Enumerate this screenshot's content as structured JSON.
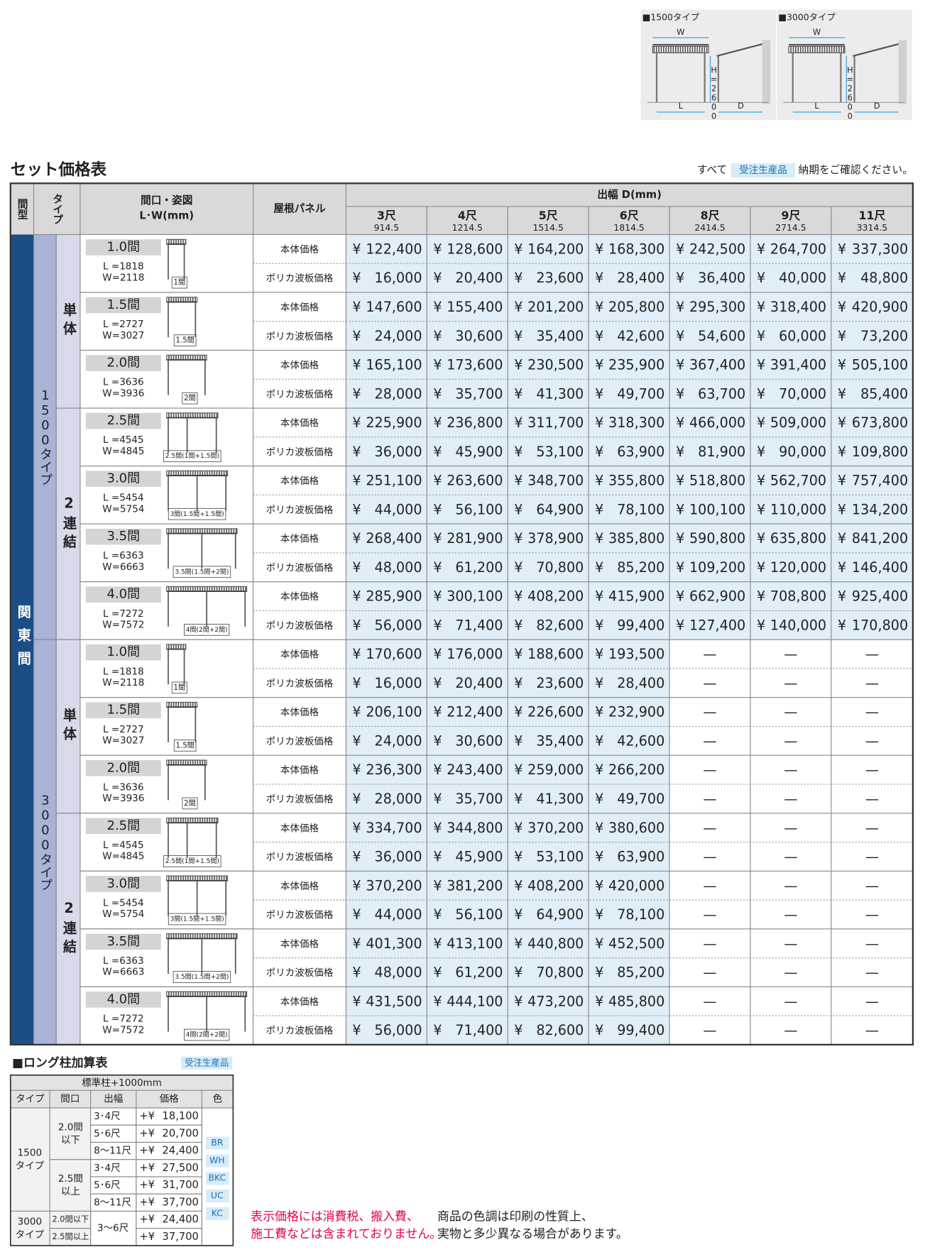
{
  "diagram": {
    "items": [
      {
        "title": "■1500タイプ",
        "w": "W",
        "h": "H=2600",
        "l": "L",
        "d": "D"
      },
      {
        "title": "■3000タイプ",
        "w": "W",
        "h": "H=2600",
        "l": "L",
        "d": "D"
      }
    ]
  },
  "header": {
    "title": "セット価格表",
    "note_pre": "すべて",
    "badge": "受注生産品",
    "note_post": "納期をご確認ください。"
  },
  "table": {
    "head_type_form": "間型",
    "head_type": "タイプ",
    "head_size": "間口・姿図",
    "head_size_unit": "L･W(mm)",
    "head_panel": "屋根パネル",
    "head_depth": "出幅 D(mm)",
    "columns": [
      {
        "shaku": "3尺",
        "mm": "914.5"
      },
      {
        "shaku": "4尺",
        "mm": "1214.5"
      },
      {
        "shaku": "5尺",
        "mm": "1514.5"
      },
      {
        "shaku": "6尺",
        "mm": "1814.5"
      },
      {
        "shaku": "8尺",
        "mm": "2414.5"
      },
      {
        "shaku": "9尺",
        "mm": "2714.5"
      },
      {
        "shaku": "11尺",
        "mm": "3314.5"
      }
    ],
    "region": "関東間",
    "panels": [
      "本体価格",
      "ポリカ波板価格"
    ],
    "yen": "¥",
    "sizes": [
      {
        "label": "1.0間",
        "l": "L =1818",
        "w": "W=2118",
        "figure": "1間"
      },
      {
        "label": "1.5間",
        "l": "L =2727",
        "w": "W=3027",
        "figure": "1.5間"
      },
      {
        "label": "2.0間",
        "l": "L =3636",
        "w": "W=3936",
        "figure": "2間"
      },
      {
        "label": "2.5間",
        "l": "L =4545",
        "w": "W=4845",
        "figure": "2.5間(1間+1.5間)"
      },
      {
        "label": "3.0間",
        "l": "L =5454",
        "w": "W=5754",
        "figure": "3間(1.5間+1.5間)"
      },
      {
        "label": "3.5間",
        "l": "L =6363",
        "w": "W=6663",
        "figure": "3.5間(1.5間+2間)"
      },
      {
        "label": "4.0間",
        "l": "L =7272",
        "w": "W=7572",
        "figure": "4間(2間+2間)"
      }
    ],
    "types": [
      {
        "name": "1500タイプ",
        "groups": [
          {
            "name": "単体",
            "rows": [
              {
                "main": [
                  "122,400",
                  "128,600",
                  "164,200",
                  "168,300",
                  "242,500",
                  "264,700",
                  "337,300"
                ],
                "poly": [
                  "16,000",
                  "20,400",
                  "23,600",
                  "28,400",
                  "36,400",
                  "40,000",
                  "48,800"
                ]
              },
              {
                "main": [
                  "147,600",
                  "155,400",
                  "201,200",
                  "205,800",
                  "295,300",
                  "318,400",
                  "420,900"
                ],
                "poly": [
                  "24,000",
                  "30,600",
                  "35,400",
                  "42,600",
                  "54,600",
                  "60,000",
                  "73,200"
                ]
              },
              {
                "main": [
                  "165,100",
                  "173,600",
                  "230,500",
                  "235,900",
                  "367,400",
                  "391,400",
                  "505,100"
                ],
                "poly": [
                  "28,000",
                  "35,700",
                  "41,300",
                  "49,700",
                  "63,700",
                  "70,000",
                  "85,400"
                ]
              }
            ]
          },
          {
            "name": "2連結",
            "rows": [
              {
                "main": [
                  "225,900",
                  "236,800",
                  "311,700",
                  "318,300",
                  "466,000",
                  "509,000",
                  "673,800"
                ],
                "poly": [
                  "36,000",
                  "45,900",
                  "53,100",
                  "63,900",
                  "81,900",
                  "90,000",
                  "109,800"
                ]
              },
              {
                "main": [
                  "251,100",
                  "263,600",
                  "348,700",
                  "355,800",
                  "518,800",
                  "562,700",
                  "757,400"
                ],
                "poly": [
                  "44,000",
                  "56,100",
                  "64,900",
                  "78,100",
                  "100,100",
                  "110,000",
                  "134,200"
                ]
              },
              {
                "main": [
                  "268,400",
                  "281,900",
                  "378,900",
                  "385,800",
                  "590,800",
                  "635,800",
                  "841,200"
                ],
                "poly": [
                  "48,000",
                  "61,200",
                  "70,800",
                  "85,200",
                  "109,200",
                  "120,000",
                  "146,400"
                ]
              },
              {
                "main": [
                  "285,900",
                  "300,100",
                  "408,200",
                  "415,900",
                  "662,900",
                  "708,800",
                  "925,400"
                ],
                "poly": [
                  "56,000",
                  "71,400",
                  "82,600",
                  "99,400",
                  "127,400",
                  "140,000",
                  "170,800"
                ]
              }
            ]
          }
        ]
      },
      {
        "name": "3000タイプ",
        "groups": [
          {
            "name": "単体",
            "rows": [
              {
                "main": [
                  "170,600",
                  "176,000",
                  "188,600",
                  "193,500",
                  "—",
                  "—",
                  "—"
                ],
                "poly": [
                  "16,000",
                  "20,400",
                  "23,600",
                  "28,400",
                  "—",
                  "—",
                  "—"
                ]
              },
              {
                "main": [
                  "206,100",
                  "212,400",
                  "226,600",
                  "232,900",
                  "—",
                  "—",
                  "—"
                ],
                "poly": [
                  "24,000",
                  "30,600",
                  "35,400",
                  "42,600",
                  "—",
                  "—",
                  "—"
                ]
              },
              {
                "main": [
                  "236,300",
                  "243,400",
                  "259,000",
                  "266,200",
                  "—",
                  "—",
                  "—"
                ],
                "poly": [
                  "28,000",
                  "35,700",
                  "41,300",
                  "49,700",
                  "—",
                  "—",
                  "—"
                ]
              }
            ]
          },
          {
            "name": "2連結",
            "rows": [
              {
                "main": [
                  "334,700",
                  "344,800",
                  "370,200",
                  "380,600",
                  "—",
                  "—",
                  "—"
                ],
                "poly": [
                  "36,000",
                  "45,900",
                  "53,100",
                  "63,900",
                  "—",
                  "—",
                  "—"
                ]
              },
              {
                "main": [
                  "370,200",
                  "381,200",
                  "408,200",
                  "420,000",
                  "—",
                  "—",
                  "—"
                ],
                "poly": [
                  "44,000",
                  "56,100",
                  "64,900",
                  "78,100",
                  "—",
                  "—",
                  "—"
                ]
              },
              {
                "main": [
                  "401,300",
                  "413,100",
                  "440,800",
                  "452,500",
                  "—",
                  "—",
                  "—"
                ],
                "poly": [
                  "48,000",
                  "61,200",
                  "70,800",
                  "85,200",
                  "—",
                  "—",
                  "—"
                ]
              },
              {
                "main": [
                  "431,500",
                  "444,100",
                  "473,200",
                  "485,800",
                  "—",
                  "—",
                  "—"
                ],
                "poly": [
                  "56,000",
                  "71,400",
                  "82,600",
                  "99,400",
                  "—",
                  "—",
                  "—"
                ]
              }
            ]
          }
        ]
      }
    ]
  },
  "long": {
    "title": "■ロング柱加算表",
    "badge": "受注生産品",
    "header": "標準柱+1000mm",
    "columns": [
      "タイプ",
      "間口",
      "出幅",
      "価格",
      "色"
    ],
    "prefix": "+¥",
    "type1500": {
      "name": [
        "1500",
        "タイプ"
      ],
      "groups": [
        {
          "span": [
            "2.0間",
            "以下"
          ],
          "rows": [
            {
              "d": "3･4尺",
              "price": "18,100"
            },
            {
              "d": "5･6尺",
              "price": "20,700"
            },
            {
              "d": "8〜11尺",
              "price": "24,400"
            }
          ]
        },
        {
          "span": [
            "2.5間",
            "以上"
          ],
          "rows": [
            {
              "d": "3･4尺",
              "price": "27,500"
            },
            {
              "d": "5･6尺",
              "price": "31,700"
            },
            {
              "d": "8〜11尺",
              "price": "37,700"
            }
          ]
        }
      ]
    },
    "type3000": {
      "name": [
        "3000",
        "タイプ"
      ],
      "d": "3〜6尺",
      "rows": [
        {
          "span": "2.0間以下",
          "price": "24,400"
        },
        {
          "span": "2.5間以上",
          "price": "37,700"
        }
      ]
    },
    "colors": [
      "BR",
      "WH",
      "BKC",
      "UC",
      "KC"
    ]
  },
  "notes": {
    "red": [
      "表示価格には消費税、搬入費、",
      "施工費などは含まれておりません。"
    ],
    "black": [
      "商品の色調は印刷の性質上、",
      "実物と多少異なる場合があります。"
    ]
  }
}
